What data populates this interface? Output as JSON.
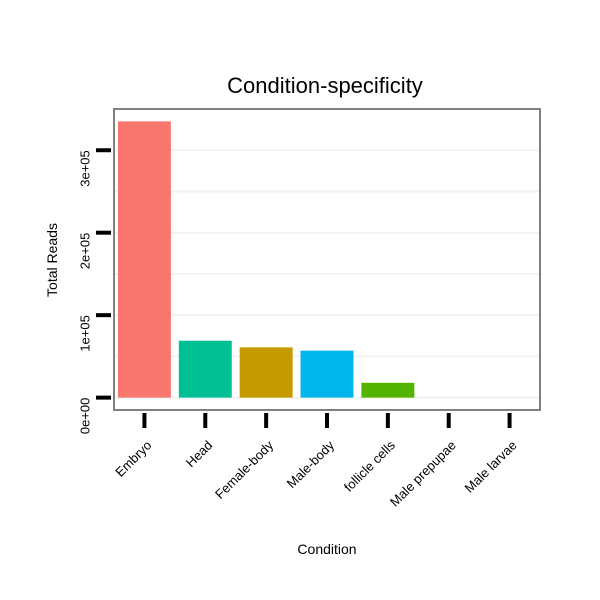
{
  "chart_data": {
    "type": "bar",
    "title": "Condition-specificity",
    "xlabel": "Condition",
    "ylabel": "Total Reads",
    "categories": [
      "Embryo",
      "Head",
      "Female-body",
      "Male-body",
      "follicle cells",
      "Male prepupae",
      "Male larvae"
    ],
    "values": [
      335000,
      69000,
      61000,
      57000,
      18000,
      0,
      0
    ],
    "colors": [
      "#F8766D",
      "#00C094",
      "#C49A00",
      "#00B6EB",
      "#53B400",
      "#A58AFF",
      "#FB61D7"
    ],
    "y_ticks": [
      0,
      100000,
      200000,
      300000
    ],
    "y_tick_labels": [
      "0e+00",
      "1e+05",
      "2e+05",
      "3e+05"
    ],
    "ylim": [
      -15000,
      350000
    ],
    "grid": true,
    "legend": "none"
  }
}
